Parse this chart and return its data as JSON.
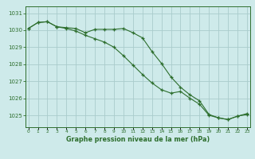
{
  "title": "Graphe pression niveau de la mer (hPa)",
  "background_color": "#ceeaea",
  "grid_color": "#aacccc",
  "line_color": "#2d6e2d",
  "marker_color": "#2d6e2d",
  "x_values": [
    0,
    1,
    2,
    3,
    4,
    5,
    6,
    7,
    8,
    9,
    10,
    11,
    12,
    13,
    14,
    15,
    16,
    17,
    18,
    19,
    20,
    21,
    22,
    23
  ],
  "series1": [
    1030.1,
    1030.45,
    1030.5,
    1030.2,
    1030.15,
    1030.1,
    1029.85,
    1030.05,
    1030.05,
    1030.05,
    1030.1,
    1029.85,
    1029.55,
    1028.75,
    1028.05,
    1027.25,
    1026.65,
    1026.2,
    1025.85,
    1025.05,
    1024.85,
    1024.75,
    1024.95,
    1025.05
  ],
  "series2": [
    1030.1,
    1030.45,
    1030.5,
    1030.2,
    1030.1,
    1029.95,
    1029.7,
    1029.5,
    1029.3,
    1029.0,
    1028.5,
    1027.95,
    1027.4,
    1026.9,
    1026.5,
    1026.3,
    1026.4,
    1026.0,
    1025.65,
    1025.0,
    1024.85,
    1024.75,
    1024.95,
    1025.1
  ],
  "ylim_min": 1024.3,
  "ylim_max": 1031.4,
  "yticks": [
    1025,
    1026,
    1027,
    1028,
    1029,
    1030,
    1031
  ],
  "xtick_labels": [
    "0",
    "1",
    "2",
    "3",
    "4",
    "5",
    "6",
    "7",
    "8",
    "9",
    "10",
    "11",
    "12",
    "13",
    "14",
    "15",
    "16",
    "17",
    "18",
    "19",
    "20",
    "21",
    "22",
    "23"
  ]
}
